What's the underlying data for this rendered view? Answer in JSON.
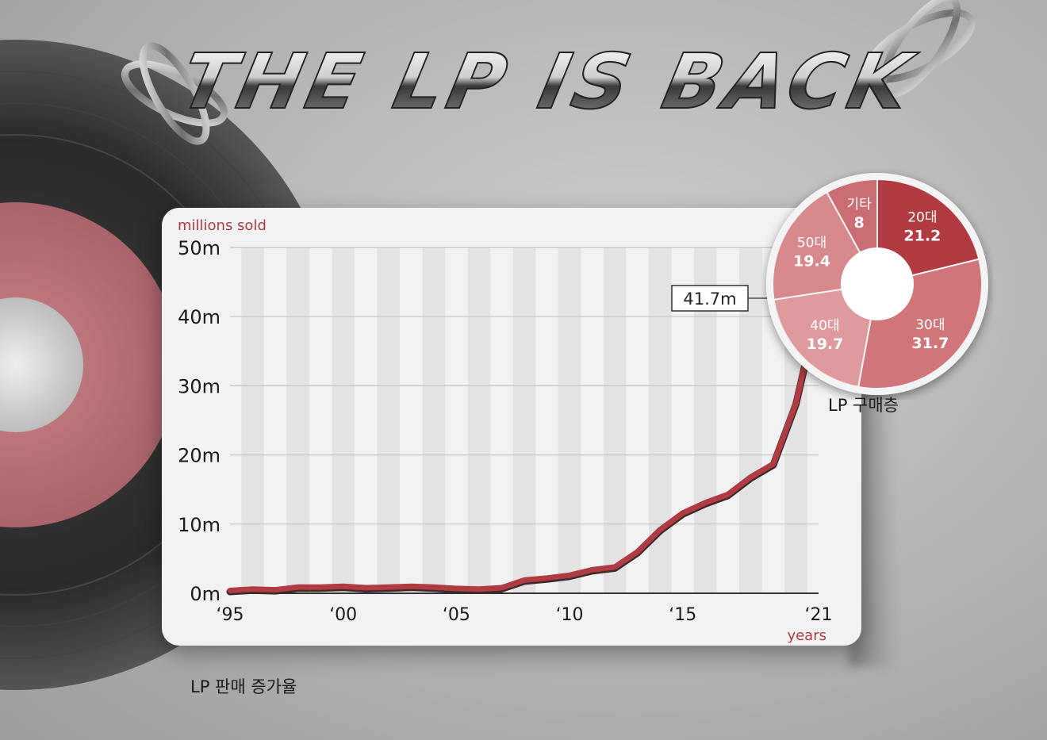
{
  "poster": {
    "title": "THE LP IS BACK",
    "line_caption": "LP 판매 증가율",
    "pie_caption": "LP 구매층"
  },
  "chart_data": [
    {
      "type": "line",
      "ylabel": "millions sold",
      "xlabel": "years",
      "ylim": [
        0,
        50
      ],
      "xlim": [
        1995,
        2021
      ],
      "y_ticks": [
        "0m",
        "10m",
        "20m",
        "30m",
        "40m",
        "50m"
      ],
      "x_ticks": [
        "‘95",
        "‘00",
        "‘05",
        "‘10",
        "‘15",
        "‘21"
      ],
      "x_tick_values": [
        1995,
        2000,
        2005,
        2010,
        2015,
        2021
      ],
      "y_tick_values": [
        0,
        10,
        20,
        30,
        40,
        50
      ],
      "grid": true,
      "color": "#b03c43",
      "x": [
        1995,
        1996,
        1997,
        1998,
        1999,
        2000,
        2001,
        2002,
        2003,
        2004,
        2005,
        2006,
        2007,
        2008,
        2009,
        2010,
        2011,
        2012,
        2013,
        2014,
        2015,
        2016,
        2017,
        2018,
        2019,
        2020,
        2021
      ],
      "values": [
        0.4,
        0.6,
        0.5,
        0.9,
        0.9,
        1.0,
        0.8,
        0.9,
        1.0,
        0.9,
        0.7,
        0.6,
        0.8,
        1.9,
        2.2,
        2.6,
        3.4,
        3.8,
        6.0,
        9.2,
        11.6,
        13.1,
        14.3,
        16.8,
        18.7,
        27.5,
        41.7
      ],
      "annotation": {
        "label": "41.7m",
        "x": 2021,
        "y": 41.7
      }
    },
    {
      "type": "pie",
      "title": "LP 구매층",
      "slices": [
        {
          "label": "20대",
          "value": 21.2,
          "value_label": "21.2",
          "color": "#b23a41"
        },
        {
          "label": "30대",
          "value": 31.7,
          "value_label": "31.7",
          "color": "#d0767a"
        },
        {
          "label": "40대",
          "value": 19.7,
          "value_label": "19.7",
          "color": "#de9a9c"
        },
        {
          "label": "50대",
          "value": 19.4,
          "value_label": "19.4",
          "color": "#d8898c"
        },
        {
          "label": "기타",
          "value": 8,
          "value_label": "8",
          "color": "#cb6e73"
        }
      ]
    }
  ]
}
